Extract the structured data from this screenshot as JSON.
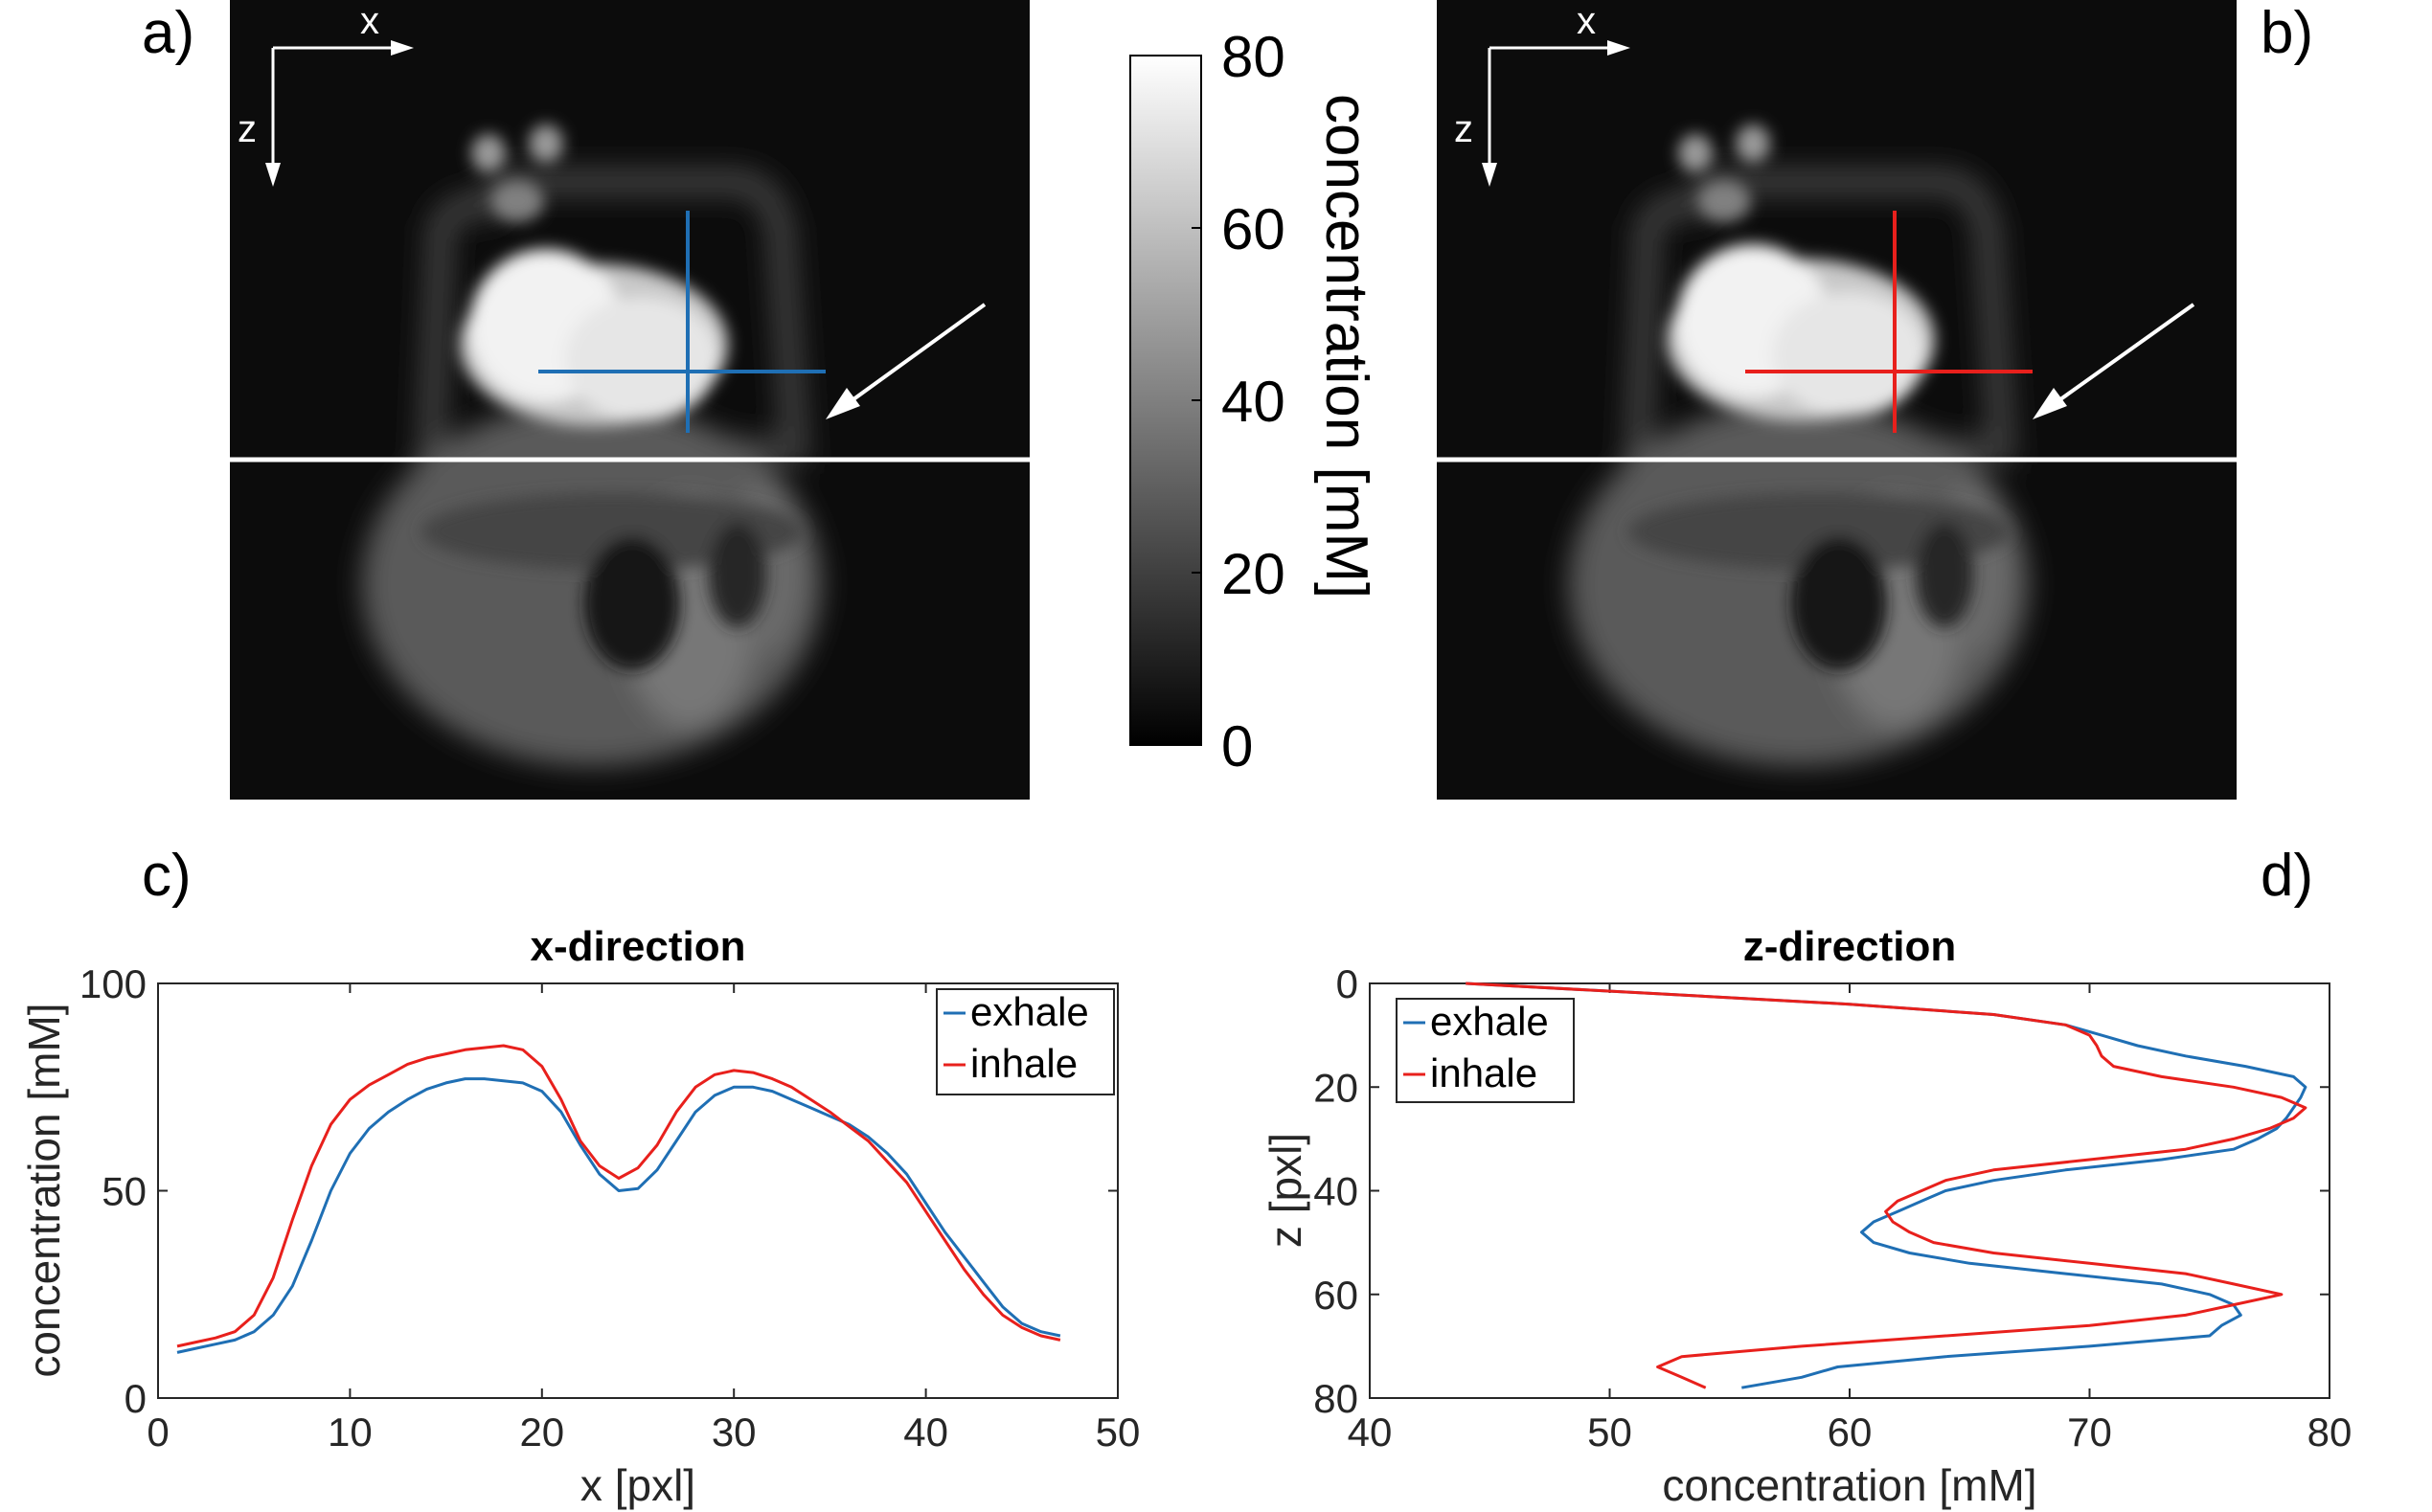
{
  "panel_labels": {
    "a": "a)",
    "b": "b)",
    "c": "c)",
    "d": "d)"
  },
  "axes_arrows": {
    "x_label": "x",
    "z_label": "z"
  },
  "colorbar": {
    "label": "concentration [mM]",
    "ticks": [
      "0",
      "20",
      "40",
      "60",
      "80"
    ],
    "range": [
      0,
      80
    ]
  },
  "colors": {
    "exhale": "#1f6fb4",
    "inhale": "#e8201c",
    "marker_line": "#ffffff",
    "image_bg": "#0c0c0c"
  },
  "chart_data": [
    {
      "type": "line",
      "panel": "c)",
      "title": "x-direction",
      "xlabel": "x [pxl]",
      "ylabel": "concentration [mM]",
      "xlim": [
        0,
        50
      ],
      "ylim": [
        0,
        100
      ],
      "xticks": [
        0,
        10,
        20,
        30,
        40,
        50
      ],
      "yticks": [
        0,
        50,
        100
      ],
      "legend_position": "top-right",
      "series": [
        {
          "name": "exhale",
          "color": "#1f6fb4",
          "x": [
            1,
            2,
            3,
            4,
            5,
            6,
            7,
            8,
            9,
            10,
            11,
            12,
            13,
            14,
            15,
            16,
            17,
            18,
            19,
            20,
            21,
            22,
            23,
            24,
            25,
            26,
            27,
            28,
            29,
            30,
            31,
            32,
            33,
            34,
            35,
            36,
            37,
            38,
            39,
            40,
            41,
            42,
            43,
            44,
            45,
            46,
            47
          ],
          "y": [
            11,
            12,
            13,
            14,
            16,
            20,
            27,
            38,
            50,
            59,
            65,
            69,
            72,
            74.5,
            76,
            77,
            77,
            76.5,
            76,
            74,
            69,
            61,
            54,
            50,
            50.5,
            55,
            62,
            69,
            73,
            75,
            75,
            74,
            72,
            70,
            68,
            66,
            63,
            59,
            54,
            47,
            40,
            34,
            28,
            22,
            18,
            16,
            15
          ]
        },
        {
          "name": "inhale",
          "color": "#e8201c",
          "x": [
            1,
            2,
            3,
            4,
            5,
            6,
            7,
            8,
            9,
            10,
            11,
            12,
            13,
            14,
            15,
            16,
            17,
            18,
            19,
            20,
            21,
            22,
            23,
            24,
            25,
            26,
            27,
            28,
            29,
            30,
            31,
            32,
            33,
            34,
            35,
            36,
            37,
            38,
            39,
            40,
            41,
            42,
            43,
            44,
            45,
            46,
            47
          ],
          "y": [
            12.5,
            13.5,
            14.5,
            16,
            20,
            29,
            43,
            56,
            66,
            72,
            75.5,
            78,
            80.5,
            82,
            83,
            84,
            84.5,
            85,
            84,
            80,
            72,
            62,
            56,
            53,
            55.5,
            61,
            69,
            75,
            78,
            79,
            78.5,
            77,
            75,
            72,
            69,
            65.5,
            62,
            57,
            52,
            45,
            38,
            31,
            25,
            20,
            17,
            15,
            14
          ]
        }
      ]
    },
    {
      "type": "line",
      "panel": "d)",
      "title": "z-direction",
      "xlabel": "concentration [mM]",
      "ylabel": "z [pxl]",
      "xlim": [
        40,
        80
      ],
      "ylim": [
        0,
        80
      ],
      "y_reversed": true,
      "xticks": [
        40,
        50,
        60,
        70,
        80
      ],
      "yticks": [
        0,
        20,
        40,
        60,
        80
      ],
      "legend_position": "top-left",
      "series": [
        {
          "name": "exhale",
          "color": "#1f6fb4",
          "z": [
            0,
            2,
            4,
            6,
            8,
            10,
            12,
            14,
            16,
            18,
            20,
            22,
            24,
            26,
            28,
            30,
            32,
            34,
            36,
            38,
            40,
            42,
            44,
            46,
            48,
            50,
            52,
            54,
            56,
            58,
            60,
            62,
            64,
            66,
            68,
            70,
            72,
            74,
            76,
            78
          ],
          "concentration": [
            44,
            52,
            60,
            66,
            69,
            70.5,
            72,
            74,
            76.5,
            78.5,
            79,
            78.8,
            78.5,
            78.2,
            77.8,
            77,
            76,
            73,
            69,
            66,
            64,
            63,
            62,
            61,
            60.5,
            61,
            62.5,
            65,
            69,
            73,
            75,
            76,
            76.3,
            75.5,
            75,
            70,
            64,
            59.5,
            58,
            55.5
          ]
        },
        {
          "name": "inhale",
          "color": "#e8201c",
          "z": [
            0,
            2,
            4,
            6,
            8,
            10,
            12,
            14,
            16,
            18,
            20,
            22,
            24,
            26,
            28,
            30,
            32,
            34,
            36,
            38,
            40,
            42,
            44,
            46,
            48,
            50,
            52,
            54,
            56,
            58,
            60,
            62,
            64,
            66,
            68,
            70,
            72,
            74,
            76,
            78
          ],
          "concentration": [
            44,
            52,
            60,
            66,
            69,
            70,
            70.3,
            70.5,
            71,
            73,
            76,
            78,
            79,
            78.5,
            77.5,
            76,
            74,
            70,
            66,
            64,
            63,
            62,
            61.5,
            61.8,
            62.5,
            63.5,
            66,
            70,
            74,
            76,
            78,
            76,
            74,
            70,
            64,
            58,
            53,
            52,
            53,
            54
          ]
        }
      ]
    }
  ]
}
